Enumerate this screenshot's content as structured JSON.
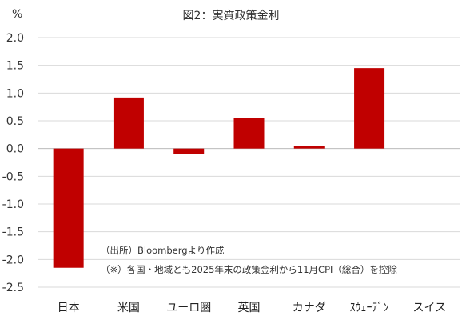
{
  "chart_data": {
    "type": "bar",
    "title": "図2：実質政策金利",
    "unit_label": "%",
    "categories": [
      "日本",
      "米国",
      "ユーロ圏",
      "英国",
      "カナダ",
      "ｽｳｪｰﾃﾞﾝ",
      "スイス"
    ],
    "values": [
      -2.15,
      0.92,
      -0.1,
      0.55,
      0.04,
      1.45,
      0.0
    ],
    "ylim": [
      -2.5,
      2.0
    ],
    "yticks": [
      "2.0",
      "1.5",
      "1.0",
      "0.5",
      "0.0",
      "-0.5",
      "-1.0",
      "-1.5",
      "-2.0",
      "-2.5"
    ],
    "grid": true,
    "bar_color": "#c00000",
    "notes": [
      "（出所）Bloombergより作成",
      "（※）各国・地域とも2025年末の政策金利から11月CPI（総合）を控除"
    ]
  }
}
